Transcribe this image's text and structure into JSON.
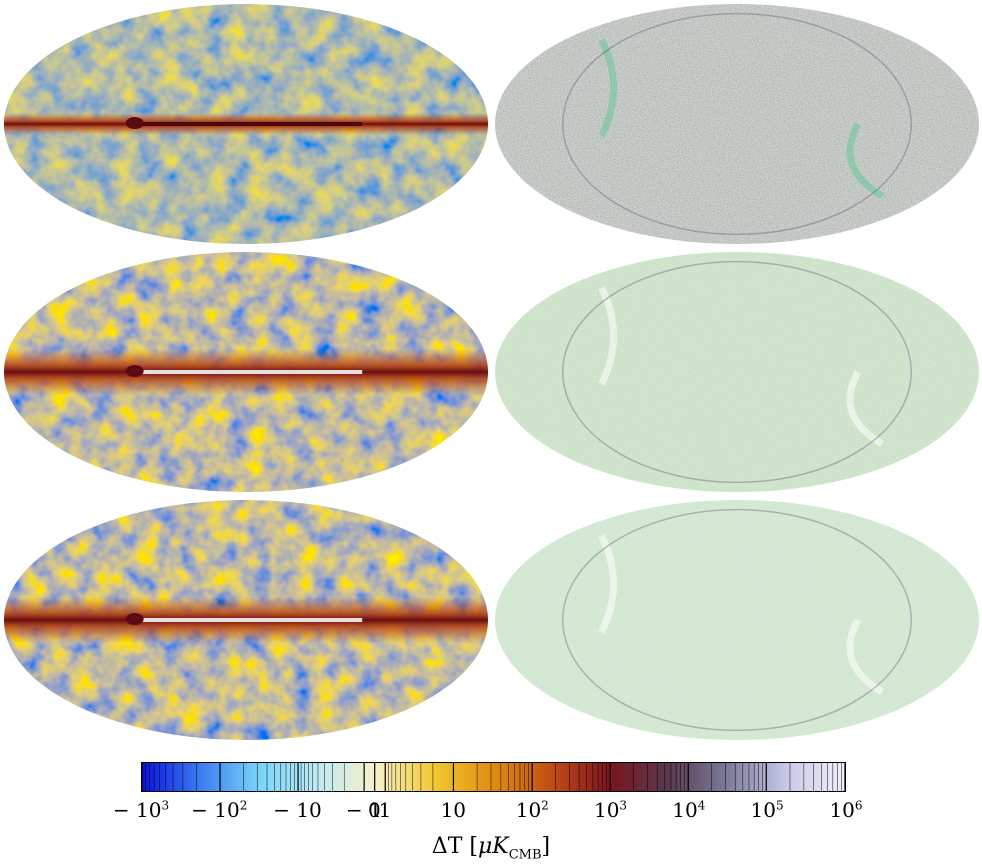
{
  "maps": [
    {
      "id": "row1-left",
      "style": "mixed-blue-orange",
      "description_color": "#8a8a78"
    },
    {
      "id": "row1-right",
      "style": "gray-residual"
    },
    {
      "id": "row2-left",
      "style": "blue-orange-strong"
    },
    {
      "id": "row2-right",
      "style": "green-residual"
    },
    {
      "id": "row3-left",
      "style": "blue-orange-strong"
    },
    {
      "id": "row3-right",
      "style": "green-residual-light"
    }
  ],
  "colorbar": {
    "ticks": [
      {
        "base": "− 10",
        "exp": "3"
      },
      {
        "base": "− 10",
        "exp": "2"
      },
      {
        "base": "− 10",
        "exp": ""
      },
      {
        "base": "− 1",
        "exp": ""
      },
      {
        "base": "0",
        "exp": ""
      },
      {
        "base": "1",
        "exp": ""
      },
      {
        "base": "10",
        "exp": ""
      },
      {
        "base": "10",
        "exp": "2"
      },
      {
        "base": "10",
        "exp": "3"
      },
      {
        "base": "10",
        "exp": "4"
      },
      {
        "base": "10",
        "exp": "5"
      },
      {
        "base": "10",
        "exp": "6"
      }
    ],
    "label_main": "ΔT",
    "label_unit": "μK",
    "label_sub": "CMB",
    "colors": [
      "#0a14e0",
      "#3c7cf0",
      "#78d4f8",
      "#bfeaf4",
      "#f8f0c8",
      "#f0c830",
      "#e08c10",
      "#c24c14",
      "#7a1420",
      "#5a3a4e",
      "#7c7c9c",
      "#c8c8e8",
      "#f0f0fa"
    ]
  }
}
